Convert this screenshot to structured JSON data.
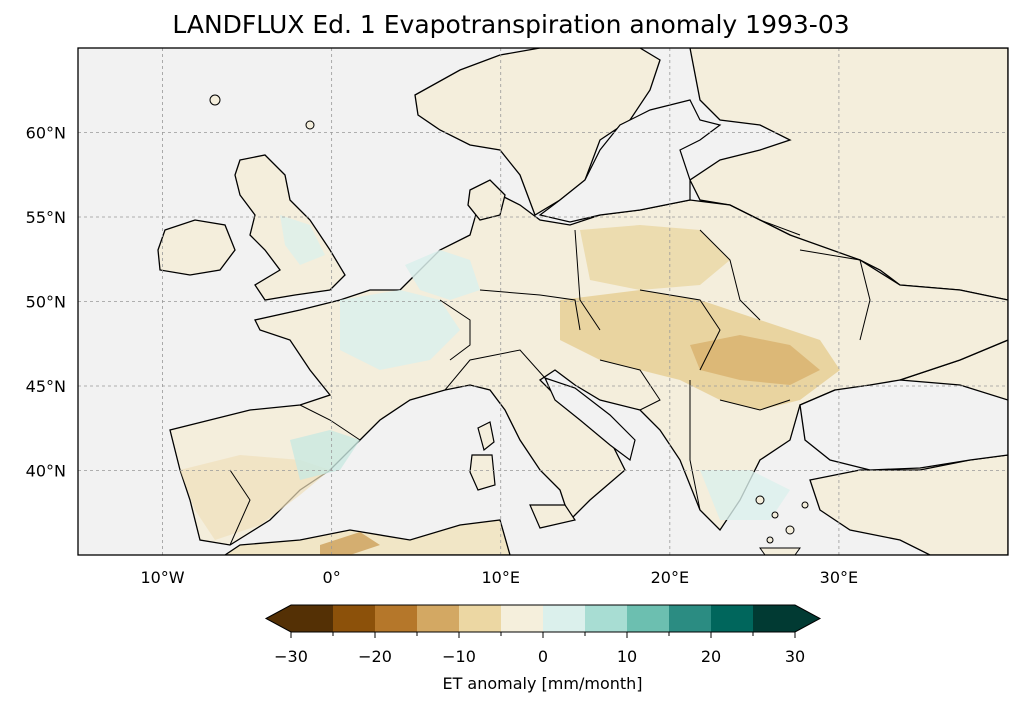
{
  "title": "LANDFLUX Ed. 1 Evapotranspiration anomaly 1993-03",
  "map": {
    "extent": {
      "lon": [
        -15,
        40
      ],
      "lat": [
        35,
        65
      ]
    },
    "lon_ticks": [
      {
        "value": -10,
        "label": "10°W"
      },
      {
        "value": 0,
        "label": "0°"
      },
      {
        "value": 10,
        "label": "10°E"
      },
      {
        "value": 20,
        "label": "20°E"
      },
      {
        "value": 30,
        "label": "30°E"
      }
    ],
    "lat_ticks": [
      {
        "value": 40,
        "label": "40°N"
      },
      {
        "value": 45,
        "label": "45°N"
      },
      {
        "value": 50,
        "label": "50°N"
      },
      {
        "value": 55,
        "label": "55°N"
      },
      {
        "value": 60,
        "label": "60°N"
      }
    ],
    "gridlines": true,
    "ocean_color": "#f2f2f2",
    "coastline_color": "#000000"
  },
  "colorbar": {
    "label": "ET anomaly [mm/month]",
    "levels": [
      -30,
      -25,
      -20,
      -15,
      -10,
      -5,
      0,
      5,
      10,
      15,
      20,
      25,
      30
    ],
    "tick_labels": [
      "−30",
      "−20",
      "−10",
      "0",
      "10",
      "20",
      "30"
    ],
    "tick_values": [
      -30,
      -20,
      -10,
      0,
      10,
      20,
      30
    ],
    "colors": [
      "#543005",
      "#8c510a",
      "#b5772a",
      "#d3a863",
      "#ecd7a3",
      "#f5efdc",
      "#dbf0ec",
      "#a8ddd3",
      "#6cbfb0",
      "#2b8c82",
      "#00665c",
      "#013a33"
    ],
    "extend": "both"
  }
}
